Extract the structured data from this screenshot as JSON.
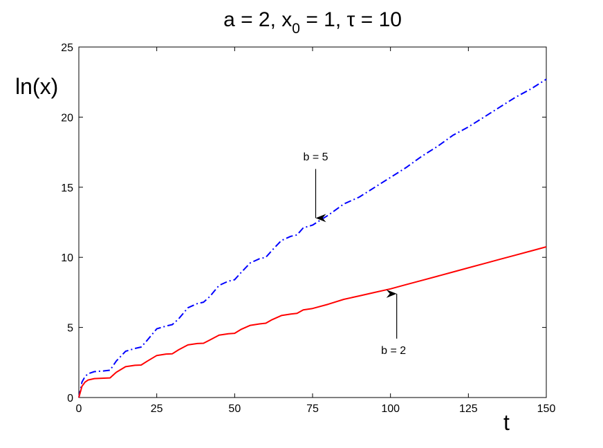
{
  "chart_data": {
    "type": "line",
    "title": {
      "prefix": "a = 2, x",
      "subscript": "0",
      "suffix": " = 1, τ = 10"
    },
    "xlabel": "t",
    "ylabel": "ln(x)",
    "xlim": [
      0,
      150
    ],
    "ylim": [
      0,
      25
    ],
    "xticks": [
      0,
      25,
      50,
      75,
      100,
      125,
      150
    ],
    "yticks": [
      0,
      5,
      10,
      15,
      20,
      25
    ],
    "grid": false,
    "series": [
      {
        "name": "b = 5",
        "color": "#0000ff",
        "dash": "dash-dot",
        "x": [
          0,
          1,
          2,
          3,
          5,
          8,
          10,
          12,
          15,
          18,
          20,
          22,
          25,
          28,
          30,
          32,
          35,
          38,
          40,
          42,
          45,
          48,
          50,
          52,
          55,
          58,
          60,
          62,
          65,
          68,
          70,
          72,
          75,
          80,
          85,
          90,
          95,
          100,
          105,
          110,
          115,
          120,
          125,
          130,
          135,
          140,
          145,
          150
        ],
        "y": [
          0,
          1.1,
          1.5,
          1.7,
          1.85,
          1.9,
          1.95,
          2.6,
          3.3,
          3.5,
          3.6,
          4.1,
          4.9,
          5.1,
          5.2,
          5.6,
          6.4,
          6.7,
          6.8,
          7.2,
          8.0,
          8.3,
          8.4,
          8.9,
          9.6,
          9.9,
          10.0,
          10.5,
          11.2,
          11.5,
          11.6,
          12.1,
          12.3,
          13.0,
          13.8,
          14.3,
          15.0,
          15.7,
          16.4,
          17.2,
          17.9,
          18.7,
          19.3,
          20.0,
          20.7,
          21.4,
          22.0,
          22.7
        ],
        "label": "b = 5"
      },
      {
        "name": "b = 2",
        "color": "#ff0000",
        "dash": "solid",
        "x": [
          0,
          1,
          2,
          3,
          5,
          8,
          10,
          12,
          15,
          18,
          20,
          22,
          25,
          28,
          30,
          32,
          35,
          38,
          40,
          42,
          45,
          48,
          50,
          52,
          55,
          58,
          60,
          62,
          65,
          68,
          70,
          72,
          75,
          80,
          85,
          90,
          95,
          100,
          105,
          110,
          115,
          120,
          125,
          130,
          135,
          140,
          145,
          150
        ],
        "y": [
          0,
          0.8,
          1.1,
          1.25,
          1.35,
          1.38,
          1.4,
          1.8,
          2.2,
          2.3,
          2.32,
          2.6,
          3.0,
          3.1,
          3.12,
          3.4,
          3.75,
          3.85,
          3.87,
          4.1,
          4.45,
          4.55,
          4.58,
          4.85,
          5.15,
          5.25,
          5.3,
          5.55,
          5.85,
          5.95,
          6.0,
          6.25,
          6.35,
          6.65,
          7.0,
          7.25,
          7.5,
          7.75,
          8.05,
          8.35,
          8.65,
          8.95,
          9.25,
          9.55,
          9.85,
          10.15,
          10.45,
          10.75
        ],
        "label": "b = 2"
      }
    ],
    "annotations": [
      {
        "text": "b = 5",
        "label_x": 76,
        "label_y": 17.2,
        "arrow_from_y": 16.3,
        "arrow_to_y": 12.8,
        "arrow_x": 76
      },
      {
        "text": "b = 2",
        "label_x": 101,
        "label_y": 3.4,
        "arrow_from_y": 4.2,
        "arrow_to_y": 7.4,
        "arrow_x": 102
      }
    ]
  }
}
